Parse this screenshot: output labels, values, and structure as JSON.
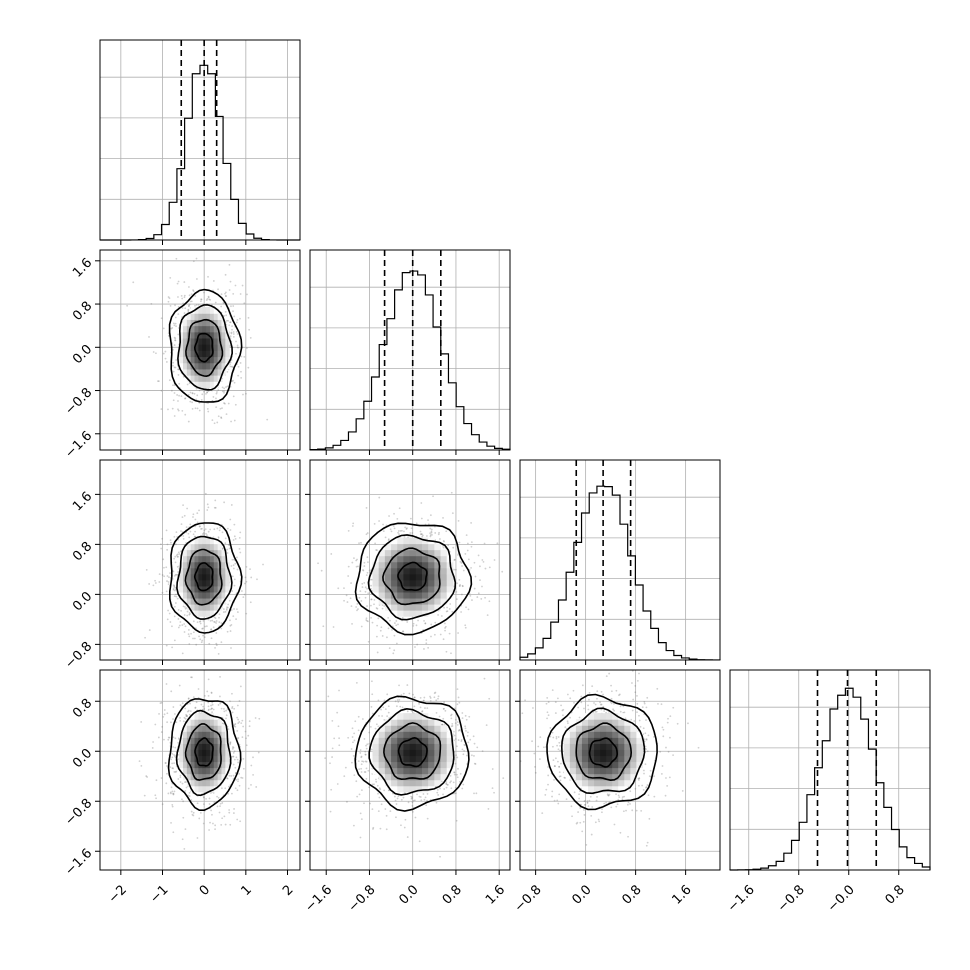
{
  "chart_data": {
    "type": "corner",
    "n_params": 4,
    "quantiles": [
      0.16,
      0.5,
      0.84
    ],
    "params": [
      {
        "mean": 0.0,
        "sd": 0.42,
        "range": [
          -2.5,
          2.3
        ]
      },
      {
        "mean": 0.0,
        "sd": 0.52,
        "range": [
          -1.9,
          1.8
        ]
      },
      {
        "mean": 0.28,
        "sd": 0.44,
        "range": [
          -1.05,
          2.15
        ]
      },
      {
        "mean": -0.02,
        "sd": 0.44,
        "range": [
          -1.9,
          1.3
        ]
      }
    ],
    "x_ticks": [
      [
        -2,
        -1,
        0,
        1,
        2
      ],
      [
        -1.6,
        -0.8,
        0.0,
        0.8,
        1.6
      ],
      [
        -0.8,
        0.0,
        0.8,
        1.6
      ],
      [
        -1.6,
        -0.8,
        -0.0,
        0.8
      ]
    ],
    "x_tick_labels": [
      [
        "−2",
        "−1",
        "0",
        "1",
        "2"
      ],
      [
        "−1.6",
        "−0.8",
        "0.0",
        "0.8",
        "1.6"
      ],
      [
        "−0.8",
        "0.0",
        "0.8",
        "1.6"
      ],
      [
        "−1.6",
        "−0.8",
        "−0.0",
        "0.8"
      ]
    ],
    "y_ticks": [
      [],
      [
        -1.6,
        -0.8,
        0.0,
        0.8,
        1.6
      ],
      [
        -0.8,
        0.0,
        0.8,
        1.6
      ],
      [
        -1.6,
        -0.8,
        0.0,
        0.8
      ]
    ],
    "y_tick_labels": [
      [],
      [
        "−1.6",
        "−0.8",
        "0.0",
        "0.8",
        "1.6"
      ],
      [
        "−0.8",
        "0.0",
        "0.8",
        "1.6"
      ],
      [
        "−1.6",
        "−0.8",
        "0.0",
        "0.8"
      ]
    ],
    "hist_quantile_lines": [
      [
        -0.55,
        0.0,
        0.3
      ],
      [
        -0.52,
        0.0,
        0.52
      ],
      [
        -0.15,
        0.28,
        0.72
      ],
      [
        -0.5,
        -0.02,
        0.44
      ]
    ],
    "grid": true,
    "colors": {
      "hist": "#000000",
      "points": "#777777",
      "density": "#000000"
    }
  }
}
